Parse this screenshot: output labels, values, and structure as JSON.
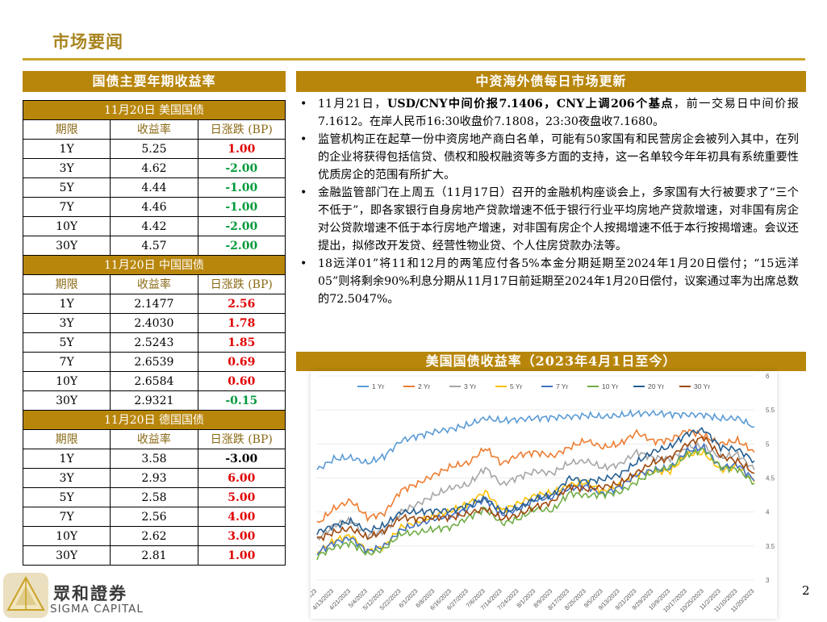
{
  "page": {
    "title": "市场要闻",
    "page_number": "2"
  },
  "left_panel": {
    "header": "国债主要年期收益率",
    "sections": [
      {
        "title": "11月20日  美国国债",
        "columns": [
          "期限",
          "收益率",
          "日涨跌 (BP)"
        ],
        "rows": [
          {
            "term": "1Y",
            "yield": "5.25",
            "change": "1.00",
            "dir": "up"
          },
          {
            "term": "3Y",
            "yield": "4.62",
            "change": "-2.00",
            "dir": "down"
          },
          {
            "term": "5Y",
            "yield": "4.44",
            "change": "-1.00",
            "dir": "down"
          },
          {
            "term": "7Y",
            "yield": "4.46",
            "change": "-1.00",
            "dir": "down"
          },
          {
            "term": "10Y",
            "yield": "4.42",
            "change": "-2.00",
            "dir": "down"
          },
          {
            "term": "30Y",
            "yield": "4.57",
            "change": "-2.00",
            "dir": "down"
          }
        ]
      },
      {
        "title": "11月20日  中国国债",
        "columns": [
          "期限",
          "收益率",
          "日涨跌 (BP)"
        ],
        "rows": [
          {
            "term": "1Y",
            "yield": "2.1477",
            "change": "2.56",
            "dir": "up"
          },
          {
            "term": "3Y",
            "yield": "2.4030",
            "change": "1.78",
            "dir": "up"
          },
          {
            "term": "5Y",
            "yield": "2.5243",
            "change": "1.85",
            "dir": "up"
          },
          {
            "term": "7Y",
            "yield": "2.6539",
            "change": "0.69",
            "dir": "up"
          },
          {
            "term": "10Y",
            "yield": "2.6584",
            "change": "0.60",
            "dir": "up"
          },
          {
            "term": "30Y",
            "yield": "2.9321",
            "change": "-0.15",
            "dir": "down"
          }
        ]
      },
      {
        "title": "11月20日  德国国债",
        "columns": [
          "期限",
          "收益率",
          "日涨跌 (BP)"
        ],
        "rows": [
          {
            "term": "1Y",
            "yield": "3.58",
            "change": "-3.00",
            "dir": "flat-dn"
          },
          {
            "term": "3Y",
            "yield": "2.93",
            "change": "6.00",
            "dir": "up"
          },
          {
            "term": "5Y",
            "yield": "2.58",
            "change": "5.00",
            "dir": "up"
          },
          {
            "term": "7Y",
            "yield": "2.56",
            "change": "4.00",
            "dir": "up"
          },
          {
            "term": "10Y",
            "yield": "2.62",
            "change": "3.00",
            "dir": "up"
          },
          {
            "term": "30Y",
            "yield": "2.81",
            "change": "1.00",
            "dir": "up"
          }
        ]
      }
    ]
  },
  "right_panel": {
    "header": "中资海外债每日市场更新",
    "news": [
      {
        "pre": "11月21日，",
        "bold": "USD/CNY中间价报7.1406，CNY上调206个基点",
        "post": "，前一交易日中间价报7.1612。在岸人民币16:30收盘价7.1808，23:30夜盘收7.1680。"
      },
      {
        "pre": "监管机构正在起草一份中资房地产商白名单，可能有50家国有和民营房企会被列入其中，在列的企业将获得包括信贷、债权和股权融资等多方面的支持，这一名单较今年年初具有系统重要性优质房企的范围有所扩大。",
        "bold": "",
        "post": ""
      },
      {
        "pre": "金融监管部门在上周五（11月17日）召开的金融机构座谈会上，多家国有大行被要求了“三个不低于”，即各家银行自身房地产贷款增速不低于银行行业平均房地产贷款增速，对非国有房企对公贷款增速不低于本行房地产增速，对非国有房企个人按揭增速不低于本行按揭增速。会议还提出，拟修改开发贷、经营性物业贷、个人住房贷款办法等。",
        "bold": "",
        "post": ""
      },
      {
        "pre": "18远洋01”将11和12月的两笔应付各5%本金分期延期至2024年1月20日偿付；“15远洋05”则将剩余90%利息分期从11月17日前延期至2024年1月20日偿付，议案通过率为出席总数的72.5047%。",
        "bold": "",
        "post": ""
      }
    ]
  },
  "chart": {
    "header": "美国国债收益率（2023年4月1日至今）"
  },
  "chart_data": {
    "type": "line",
    "title": "美国国债收益率（2023年4月1日至今）",
    "x": [
      "4/4/2023",
      "4/13/2023",
      "4/21/2023",
      "5/4/2023",
      "5/12/2023",
      "5/22/2023",
      "6/1/2023",
      "6/8/2023",
      "6/16/2023",
      "6/27/2023",
      "7/6/2023",
      "7/14/2023",
      "7/24/2023",
      "8/1/2023",
      "8/9/2023",
      "8/17/2023",
      "8/25/2023",
      "9/5/2023",
      "9/13/2023",
      "9/21/2023",
      "9/29/2023",
      "10/9/2023",
      "10/17/2023",
      "10/25/2023",
      "11/2/2023",
      "11/10/2023",
      "11/20/2023"
    ],
    "ylim": [
      3,
      6
    ],
    "yticks": [
      "3",
      "3.5",
      "4",
      "4.5",
      "5",
      "5.5",
      "6"
    ],
    "y_axis_position": "right",
    "legend_position": "top",
    "series": [
      {
        "name": "1 Yr",
        "color": "#5b9bd5",
        "values": [
          4.62,
          4.78,
          4.8,
          4.72,
          4.82,
          5.05,
          5.12,
          5.18,
          5.22,
          5.28,
          5.38,
          5.34,
          5.36,
          5.38,
          5.39,
          5.4,
          5.42,
          5.4,
          5.42,
          5.45,
          5.45,
          5.44,
          5.43,
          5.43,
          5.37,
          5.38,
          5.25
        ]
      },
      {
        "name": "2 Yr",
        "color": "#ed7d31",
        "values": [
          3.82,
          4.05,
          4.17,
          3.92,
          3.98,
          4.32,
          4.42,
          4.55,
          4.67,
          4.72,
          4.94,
          4.71,
          4.84,
          4.88,
          4.82,
          4.95,
          5.05,
          4.95,
          5.0,
          5.17,
          5.04,
          5.06,
          5.2,
          5.12,
          5.0,
          5.05,
          4.88
        ]
      },
      {
        "name": "3 Yr",
        "color": "#a5a5a5",
        "values": [
          3.6,
          3.8,
          3.88,
          3.65,
          3.72,
          4.0,
          4.12,
          4.25,
          4.36,
          4.4,
          4.65,
          4.4,
          4.52,
          4.6,
          4.57,
          4.72,
          4.75,
          4.65,
          4.7,
          4.88,
          4.8,
          4.78,
          4.95,
          4.97,
          4.8,
          4.85,
          4.62
        ]
      },
      {
        "name": "5 Yr",
        "color": "#ffc000",
        "values": [
          3.4,
          3.58,
          3.66,
          3.42,
          3.5,
          3.78,
          3.85,
          3.95,
          4.02,
          4.12,
          4.3,
          4.02,
          4.13,
          4.25,
          4.28,
          4.4,
          4.43,
          4.3,
          4.4,
          4.55,
          4.6,
          4.6,
          4.85,
          4.87,
          4.62,
          4.67,
          4.44
        ]
      },
      {
        "name": "7 Yr",
        "color": "#4472c4",
        "values": [
          3.4,
          3.55,
          3.62,
          3.42,
          3.5,
          3.74,
          3.82,
          3.9,
          3.95,
          4.05,
          4.2,
          3.95,
          4.05,
          4.18,
          4.22,
          4.35,
          4.38,
          4.26,
          4.37,
          4.55,
          4.62,
          4.64,
          4.9,
          4.95,
          4.65,
          4.7,
          4.46
        ]
      },
      {
        "name": "10 Yr",
        "color": "#70ad47",
        "values": [
          3.35,
          3.48,
          3.55,
          3.38,
          3.46,
          3.68,
          3.7,
          3.75,
          3.78,
          3.92,
          4.05,
          3.83,
          3.9,
          4.05,
          4.02,
          4.28,
          4.24,
          4.26,
          4.29,
          4.44,
          4.59,
          4.66,
          4.84,
          4.92,
          4.66,
          4.63,
          4.42
        ]
      },
      {
        "name": "20 Yr",
        "color": "#255e91",
        "values": [
          3.7,
          3.8,
          3.86,
          3.72,
          3.8,
          4.0,
          4.0,
          4.02,
          4.02,
          4.1,
          4.2,
          4.0,
          4.06,
          4.2,
          4.25,
          4.5,
          4.45,
          4.48,
          4.55,
          4.73,
          4.89,
          4.96,
          5.15,
          5.21,
          4.95,
          4.92,
          4.75
        ]
      },
      {
        "name": "30 Yr",
        "color": "#9e480e",
        "values": [
          3.6,
          3.7,
          3.76,
          3.62,
          3.72,
          3.92,
          3.9,
          3.92,
          3.92,
          3.98,
          4.05,
          3.9,
          3.96,
          4.08,
          4.15,
          4.38,
          4.33,
          4.37,
          4.42,
          4.58,
          4.73,
          4.8,
          5.0,
          5.1,
          4.82,
          4.75,
          4.57
        ]
      }
    ]
  },
  "logo": {
    "cn": "眾和證券",
    "en": "SIGMA CAPITAL",
    "icon": "triangle-logo-icon"
  }
}
